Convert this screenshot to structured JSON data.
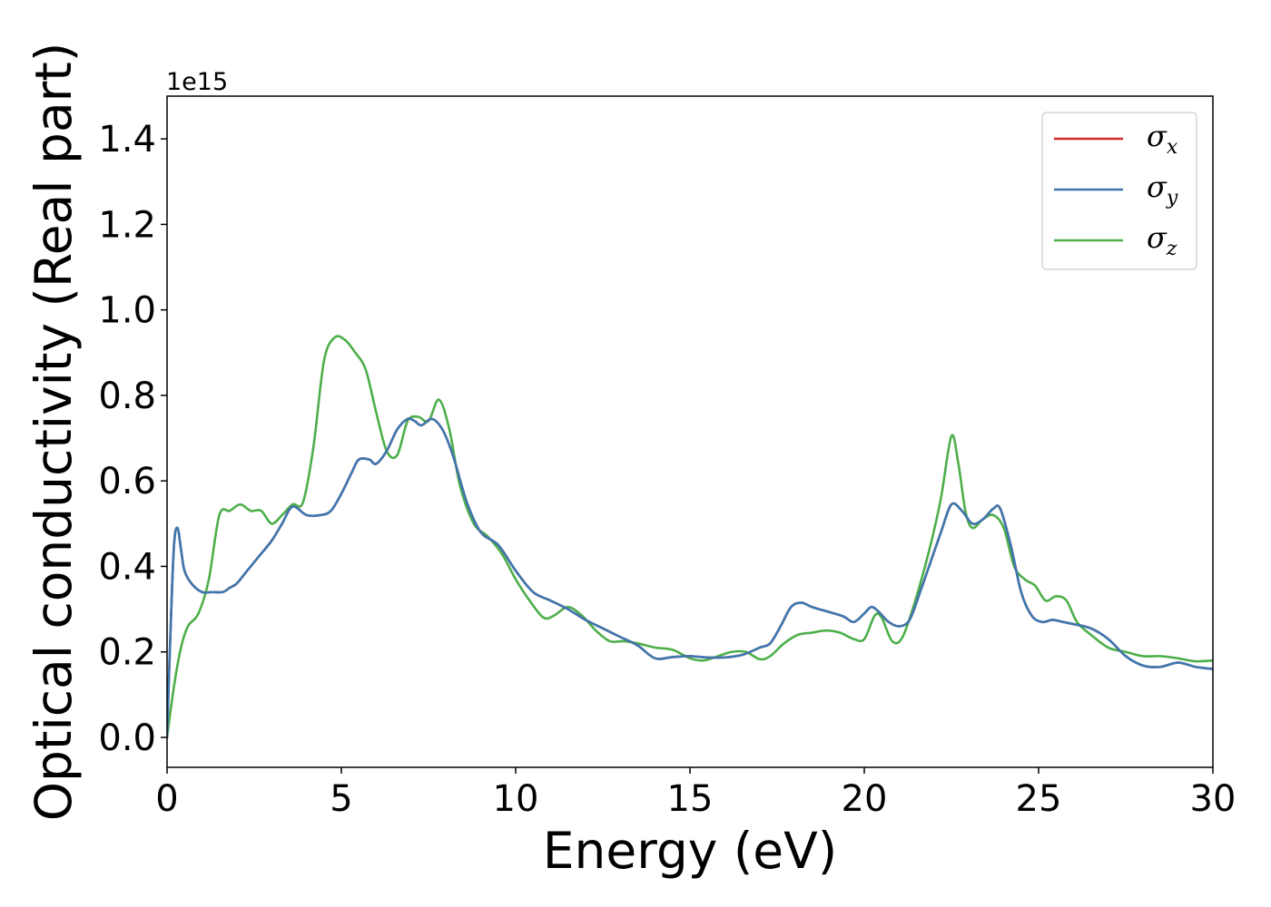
{
  "chart_data": {
    "type": "line",
    "title": "",
    "xlabel": "Energy (eV)",
    "ylabel": "Optical conductivity (Real part)",
    "y_offset_label": "1e15",
    "xlim": [
      0,
      30
    ],
    "ylim": [
      -0.07,
      1.5
    ],
    "x_ticks": [
      0,
      5,
      10,
      15,
      20,
      25,
      30
    ],
    "x_tick_labels": [
      "0",
      "5",
      "10",
      "15",
      "20",
      "25",
      "30"
    ],
    "y_ticks": [
      0.0,
      0.2,
      0.4,
      0.6,
      0.8,
      1.0,
      1.2,
      1.4
    ],
    "y_tick_labels": [
      "0.0",
      "0.2",
      "0.4",
      "0.6",
      "0.8",
      "1.0",
      "1.2",
      "1.4"
    ],
    "grid": false,
    "legend_position": "top-right",
    "series": [
      {
        "name": "σx",
        "legend_symbol": "σ",
        "legend_subscript": "x",
        "color": "#d62728",
        "x": [
          0,
          0.1,
          0.2,
          0.3,
          0.4,
          0.5,
          0.7,
          1.0,
          1.3,
          1.6,
          1.8,
          2.0,
          2.3,
          2.6,
          3.0,
          3.3,
          3.6,
          4.0,
          4.4,
          4.7,
          5.0,
          5.3,
          5.5,
          5.8,
          6.0,
          6.3,
          6.6,
          6.9,
          7.1,
          7.3,
          7.6,
          7.9,
          8.2,
          8.6,
          9.0,
          9.5,
          10.0,
          10.5,
          11.0,
          11.5,
          12.0,
          12.5,
          13.0,
          13.5,
          14.0,
          14.5,
          15.0,
          15.5,
          16.0,
          16.5,
          17.0,
          17.3,
          17.6,
          17.9,
          18.2,
          18.5,
          19.0,
          19.4,
          19.7,
          20.0,
          20.2,
          20.4,
          20.7,
          21.0,
          21.3,
          21.6,
          21.9,
          22.2,
          22.5,
          22.8,
          23.1,
          23.4,
          23.7,
          23.9,
          24.2,
          24.5,
          24.8,
          25.1,
          25.4,
          25.7,
          26.0,
          26.5,
          27.0,
          27.5,
          28.0,
          28.5,
          29.0,
          29.5,
          30.0
        ],
        "y": [
          0.0,
          0.25,
          0.45,
          0.49,
          0.44,
          0.39,
          0.36,
          0.34,
          0.34,
          0.34,
          0.35,
          0.36,
          0.39,
          0.42,
          0.46,
          0.5,
          0.54,
          0.52,
          0.52,
          0.53,
          0.57,
          0.62,
          0.65,
          0.65,
          0.64,
          0.67,
          0.72,
          0.745,
          0.74,
          0.73,
          0.745,
          0.72,
          0.66,
          0.55,
          0.48,
          0.45,
          0.39,
          0.34,
          0.32,
          0.3,
          0.275,
          0.255,
          0.235,
          0.215,
          0.185,
          0.188,
          0.19,
          0.187,
          0.187,
          0.193,
          0.21,
          0.22,
          0.26,
          0.305,
          0.315,
          0.305,
          0.293,
          0.283,
          0.27,
          0.29,
          0.305,
          0.295,
          0.27,
          0.26,
          0.275,
          0.34,
          0.41,
          0.48,
          0.545,
          0.53,
          0.5,
          0.51,
          0.535,
          0.535,
          0.45,
          0.34,
          0.285,
          0.27,
          0.275,
          0.27,
          0.265,
          0.255,
          0.23,
          0.19,
          0.168,
          0.165,
          0.175,
          0.165,
          0.16
        ]
      },
      {
        "name": "σy",
        "legend_symbol": "σ",
        "legend_subscript": "y",
        "color": "#3b78b0",
        "x": [
          0,
          0.1,
          0.2,
          0.3,
          0.4,
          0.5,
          0.7,
          1.0,
          1.3,
          1.6,
          1.8,
          2.0,
          2.3,
          2.6,
          3.0,
          3.3,
          3.6,
          4.0,
          4.4,
          4.7,
          5.0,
          5.3,
          5.5,
          5.8,
          6.0,
          6.3,
          6.6,
          6.9,
          7.1,
          7.3,
          7.6,
          7.9,
          8.2,
          8.6,
          9.0,
          9.5,
          10.0,
          10.5,
          11.0,
          11.5,
          12.0,
          12.5,
          13.0,
          13.5,
          14.0,
          14.5,
          15.0,
          15.5,
          16.0,
          16.5,
          17.0,
          17.3,
          17.6,
          17.9,
          18.2,
          18.5,
          19.0,
          19.4,
          19.7,
          20.0,
          20.2,
          20.4,
          20.7,
          21.0,
          21.3,
          21.6,
          21.9,
          22.2,
          22.5,
          22.8,
          23.1,
          23.4,
          23.7,
          23.9,
          24.2,
          24.5,
          24.8,
          25.1,
          25.4,
          25.7,
          26.0,
          26.5,
          27.0,
          27.5,
          28.0,
          28.5,
          29.0,
          29.5,
          30.0
        ],
        "y": [
          0.0,
          0.25,
          0.45,
          0.49,
          0.44,
          0.39,
          0.36,
          0.34,
          0.34,
          0.34,
          0.35,
          0.36,
          0.39,
          0.42,
          0.46,
          0.5,
          0.54,
          0.52,
          0.52,
          0.53,
          0.57,
          0.62,
          0.65,
          0.65,
          0.64,
          0.67,
          0.72,
          0.745,
          0.74,
          0.73,
          0.745,
          0.72,
          0.66,
          0.55,
          0.48,
          0.45,
          0.39,
          0.34,
          0.32,
          0.3,
          0.275,
          0.255,
          0.235,
          0.215,
          0.185,
          0.188,
          0.19,
          0.187,
          0.187,
          0.193,
          0.21,
          0.22,
          0.26,
          0.305,
          0.315,
          0.305,
          0.293,
          0.283,
          0.27,
          0.29,
          0.305,
          0.295,
          0.27,
          0.26,
          0.275,
          0.34,
          0.41,
          0.48,
          0.545,
          0.53,
          0.5,
          0.51,
          0.535,
          0.535,
          0.45,
          0.34,
          0.285,
          0.27,
          0.275,
          0.27,
          0.265,
          0.255,
          0.23,
          0.19,
          0.168,
          0.165,
          0.175,
          0.165,
          0.16
        ]
      },
      {
        "name": "σz",
        "legend_symbol": "σ",
        "legend_subscript": "z",
        "color": "#4daf4a",
        "x": [
          0,
          0.2,
          0.4,
          0.6,
          0.9,
          1.2,
          1.5,
          1.8,
          2.1,
          2.4,
          2.7,
          3.0,
          3.3,
          3.6,
          3.9,
          4.2,
          4.5,
          4.8,
          5.1,
          5.4,
          5.7,
          6.0,
          6.3,
          6.6,
          6.9,
          7.2,
          7.5,
          7.8,
          8.1,
          8.4,
          8.8,
          9.2,
          9.6,
          10.0,
          10.4,
          10.8,
          11.1,
          11.5,
          11.9,
          12.3,
          12.7,
          13.1,
          13.5,
          14.0,
          14.5,
          15.0,
          15.4,
          15.8,
          16.2,
          16.6,
          17.0,
          17.3,
          17.7,
          18.1,
          18.5,
          18.9,
          19.3,
          19.7,
          20.0,
          20.3,
          20.5,
          20.8,
          21.1,
          21.5,
          21.9,
          22.2,
          22.5,
          22.7,
          22.9,
          23.1,
          23.4,
          23.7,
          24.0,
          24.3,
          24.6,
          24.9,
          25.2,
          25.5,
          25.8,
          26.1,
          26.5,
          27.0,
          27.5,
          28.0,
          28.5,
          29.0,
          29.5,
          30.0
        ],
        "y": [
          0.0,
          0.12,
          0.21,
          0.26,
          0.29,
          0.37,
          0.52,
          0.53,
          0.545,
          0.53,
          0.53,
          0.5,
          0.52,
          0.545,
          0.55,
          0.68,
          0.88,
          0.935,
          0.93,
          0.9,
          0.86,
          0.76,
          0.67,
          0.66,
          0.74,
          0.75,
          0.74,
          0.79,
          0.72,
          0.59,
          0.5,
          0.47,
          0.43,
          0.37,
          0.32,
          0.28,
          0.285,
          0.305,
          0.285,
          0.25,
          0.225,
          0.225,
          0.22,
          0.21,
          0.205,
          0.185,
          0.18,
          0.19,
          0.2,
          0.2,
          0.183,
          0.19,
          0.22,
          0.24,
          0.245,
          0.25,
          0.245,
          0.23,
          0.23,
          0.285,
          0.28,
          0.225,
          0.235,
          0.33,
          0.45,
          0.56,
          0.705,
          0.64,
          0.53,
          0.49,
          0.51,
          0.52,
          0.49,
          0.4,
          0.37,
          0.355,
          0.32,
          0.33,
          0.32,
          0.27,
          0.24,
          0.21,
          0.2,
          0.19,
          0.19,
          0.185,
          0.178,
          0.18
        ]
      }
    ]
  }
}
